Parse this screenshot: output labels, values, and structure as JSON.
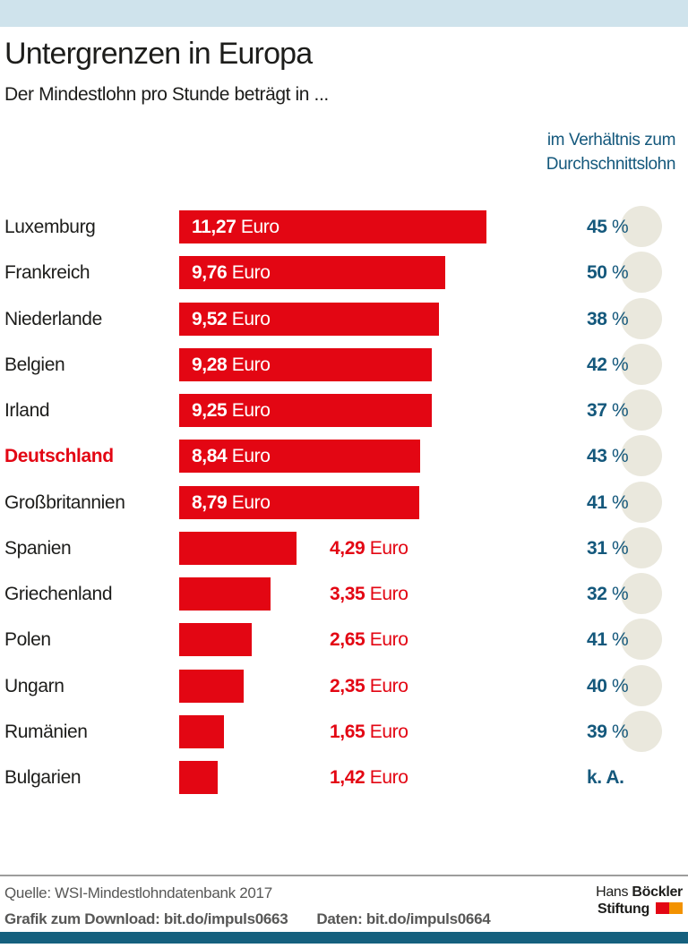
{
  "page": {
    "title": "Untergrenzen in Europa",
    "subtitle": "Der Mindestlohn pro Stunde beträgt in ...",
    "pct_header_line1": "im Verhältnis zum",
    "pct_header_line2": "Durchschnittslohn"
  },
  "chart_data": {
    "type": "bar",
    "orientation": "horizontal",
    "title": "Untergrenzen in Europa",
    "subtitle": "Der Mindestlohn pro Stunde beträgt in ...",
    "unit_label": "Euro",
    "pct_column_header": "im Verhältnis zum Durchschnittslohn",
    "xlim": [
      0,
      11.27
    ],
    "grid": false,
    "categories": [
      "Luxemburg",
      "Frankreich",
      "Niederlande",
      "Belgien",
      "Irland",
      "Deutschland",
      "Großbritannien",
      "Spanien",
      "Griechenland",
      "Polen",
      "Ungarn",
      "Rumänien",
      "Bulgarien"
    ],
    "values": [
      11.27,
      9.76,
      9.52,
      9.28,
      9.25,
      8.84,
      8.79,
      4.29,
      3.35,
      2.65,
      2.35,
      1.65,
      1.42
    ],
    "rows": [
      {
        "country": "Luxemburg",
        "value": 11.27,
        "value_label": "11,27",
        "pct_label": "45 %",
        "highlight": false
      },
      {
        "country": "Frankreich",
        "value": 9.76,
        "value_label": "9,76",
        "pct_label": "50 %",
        "highlight": false
      },
      {
        "country": "Niederlande",
        "value": 9.52,
        "value_label": "9,52",
        "pct_label": "38 %",
        "highlight": false
      },
      {
        "country": "Belgien",
        "value": 9.28,
        "value_label": "9,28",
        "pct_label": "42 %",
        "highlight": false
      },
      {
        "country": "Irland",
        "value": 9.25,
        "value_label": "9,25",
        "pct_label": "37 %",
        "highlight": false
      },
      {
        "country": "Deutschland",
        "value": 8.84,
        "value_label": "8,84",
        "pct_label": "43 %",
        "highlight": true
      },
      {
        "country": "Großbritannien",
        "value": 8.79,
        "value_label": "8,79",
        "pct_label": "41 %",
        "highlight": false
      },
      {
        "country": "Spanien",
        "value": 4.29,
        "value_label": "4,29",
        "pct_label": "31 %",
        "highlight": false
      },
      {
        "country": "Griechenland",
        "value": 3.35,
        "value_label": "3,35",
        "pct_label": "32 %",
        "highlight": false
      },
      {
        "country": "Polen",
        "value": 2.65,
        "value_label": "2,65",
        "pct_label": "41 %",
        "highlight": false
      },
      {
        "country": "Ungarn",
        "value": 2.35,
        "value_label": "2,35",
        "pct_label": "40 %",
        "highlight": false
      },
      {
        "country": "Rumänien",
        "value": 1.65,
        "value_label": "1,65",
        "pct_label": "39 %",
        "highlight": false
      },
      {
        "country": "Bulgarien",
        "value": 1.42,
        "value_label": "1,42",
        "pct_label": "k. A.",
        "highlight": false
      }
    ]
  },
  "footer": {
    "source": "Quelle: WSI-Mindestlohndatenbank  2017",
    "download_label": "Grafik zum Download: bit.do/impuls0663",
    "data_label": "Daten: bit.do/impuls0664",
    "logo_line1_regular": "Hans",
    "logo_line1_bold": "Böckler",
    "logo_line2_bold": "Stiftung"
  },
  "colors": {
    "bar_red": "#e30613",
    "teal_text": "#14587c",
    "beige_circle": "#eae8dd",
    "top_band": "#cfe3ec",
    "bottom_band": "#15607e",
    "text_dark": "#1d1d1b",
    "footer_gray": "#575756",
    "logo_red": "#e30613",
    "logo_orange": "#f39200"
  }
}
